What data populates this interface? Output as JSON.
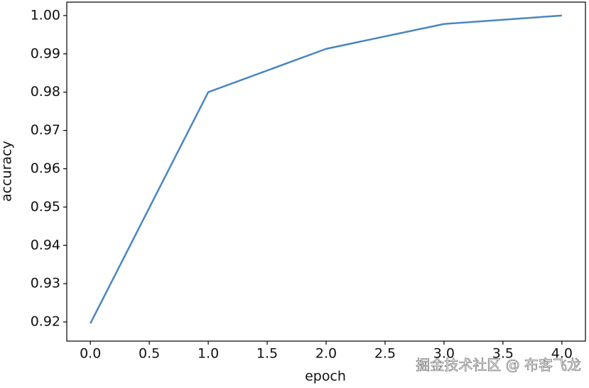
{
  "chart_data": {
    "type": "line",
    "x_label": "epoch",
    "y_label": "accuracy",
    "x": [
      0,
      1,
      2,
      3,
      4
    ],
    "series": [
      {
        "color": "#4a86c0",
        "values": [
          0.9196,
          0.98,
          0.9913,
          0.9978,
          1.0
        ]
      }
    ],
    "xlim": [
      -0.2,
      4.2
    ],
    "ylim": [
      0.915,
      1.0035
    ],
    "xticks": [
      {
        "value": 0,
        "label": "0.0"
      },
      0.5,
      {
        "value": 1,
        "label": "1.0"
      },
      1.5,
      {
        "value": 2,
        "label": "2.0"
      },
      2.5,
      {
        "value": 3,
        "label": "3.0"
      },
      3.5,
      {
        "value": 4,
        "label": "4.0"
      }
    ],
    "yticks": [
      0.92,
      0.93,
      0.94,
      0.95,
      0.96,
      0.97,
      0.98,
      0.99,
      {
        "value": 1,
        "label": "1.00"
      }
    ],
    "grid": false,
    "watermark": "掘金技术社区 @ 布客飞龙"
  }
}
